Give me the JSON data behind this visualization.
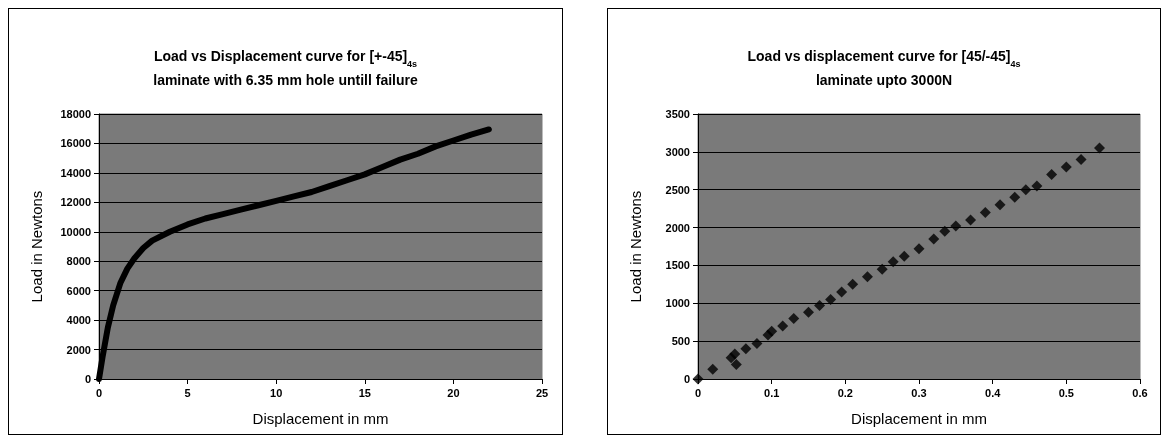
{
  "chart_data": [
    {
      "type": "line",
      "title": "Load vs Displacement curve for [+-45]$_{4s}$\nlaminate with 6.35 mm hole untill failure",
      "xlabel": "Displacement in mm",
      "ylabel": "Load in Newtons",
      "xlim": [
        0,
        25
      ],
      "xticks": [
        0,
        5,
        10,
        15,
        20,
        25
      ],
      "ylim": [
        0,
        18000
      ],
      "yticks": [
        0,
        2000,
        4000,
        6000,
        8000,
        10000,
        12000,
        14000,
        16000,
        18000
      ],
      "grid": "y",
      "marker": "none",
      "line_style": "solid",
      "series": [
        {
          "color": "#000000",
          "x": [
            0,
            0.2,
            0.5,
            0.8,
            1.2,
            1.6,
            2,
            2.5,
            3,
            4,
            5,
            6,
            7,
            8,
            9,
            10,
            11,
            12,
            13,
            14,
            15,
            16,
            17,
            18,
            19,
            20,
            21,
            22
          ],
          "values": [
            0,
            1500,
            3500,
            5000,
            6500,
            7500,
            8200,
            8900,
            9400,
            10000,
            10500,
            10900,
            11200,
            11500,
            11800,
            12100,
            12400,
            12700,
            13100,
            13500,
            13900,
            14400,
            14900,
            15300,
            15800,
            16200,
            16600,
            16950
          ]
        }
      ]
    },
    {
      "type": "scatter",
      "title": "Load vs displacement curve for [45/-45]$_{4s}$\nlaminate upto 3000N",
      "xlabel": "Displacement in mm",
      "ylabel": "Load in Newtons",
      "xlim": [
        0,
        0.6
      ],
      "xticks": [
        0,
        0.1,
        0.2,
        0.3,
        0.4,
        0.5,
        0.6
      ],
      "ylim": [
        0,
        3500
      ],
      "yticks": [
        0,
        500,
        1000,
        1500,
        2000,
        2500,
        3000,
        3500
      ],
      "grid": "y",
      "marker": "diamond",
      "series": [
        {
          "color": "#000000",
          "x": [
            0,
            0.02,
            0.045,
            0.05,
            0.052,
            0.065,
            0.08,
            0.095,
            0.1,
            0.115,
            0.13,
            0.15,
            0.165,
            0.18,
            0.195,
            0.21,
            0.23,
            0.25,
            0.265,
            0.28,
            0.3,
            0.32,
            0.335,
            0.35,
            0.37,
            0.39,
            0.41,
            0.43,
            0.445,
            0.46,
            0.48,
            0.5,
            0.52,
            0.545
          ],
          "values": [
            0,
            130,
            280,
            330,
            190,
            400,
            470,
            580,
            630,
            700,
            800,
            880,
            970,
            1050,
            1150,
            1250,
            1350,
            1450,
            1550,
            1620,
            1720,
            1850,
            1950,
            2020,
            2100,
            2200,
            2300,
            2400,
            2500,
            2550,
            2700,
            2800,
            2900,
            3050
          ]
        }
      ]
    }
  ]
}
